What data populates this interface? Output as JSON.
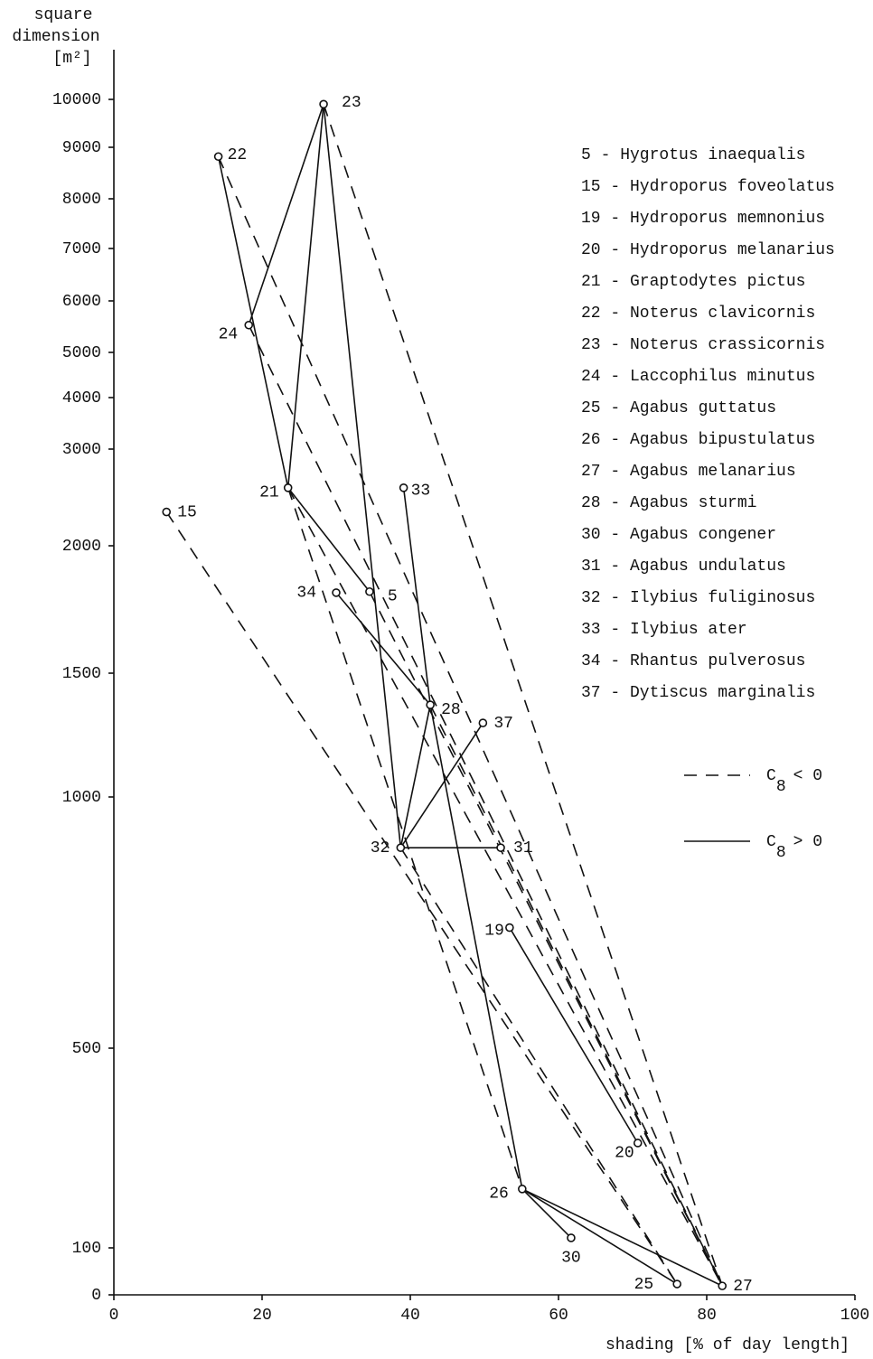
{
  "chart_data": {
    "type": "scatter",
    "ylabel": [
      "square",
      "dimension",
      "[m²]"
    ],
    "xlabel": "shading [% of day length]",
    "xlim": [
      0,
      100
    ],
    "xticks": [
      0,
      20,
      40,
      60,
      80,
      100
    ],
    "ylim": [
      0,
      10000
    ],
    "yticks": [
      0,
      100,
      500,
      1000,
      1500,
      2000,
      3000,
      4000,
      5000,
      6000,
      7000,
      8000,
      9000,
      10000
    ],
    "points": [
      {
        "label": "5",
        "x": 34.5,
        "y": 1820
      },
      {
        "label": "15",
        "x": 7.1,
        "y": 2350
      },
      {
        "label": "19",
        "x": 53.4,
        "y": 740
      },
      {
        "label": "20",
        "x": 70.7,
        "y": 310
      },
      {
        "label": "21",
        "x": 23.5,
        "y": 2600
      },
      {
        "label": "22",
        "x": 14.1,
        "y": 8820
      },
      {
        "label": "23",
        "x": 28.3,
        "y": 9900
      },
      {
        "label": "24",
        "x": 18.2,
        "y": 5530
      },
      {
        "label": "25",
        "x": 76,
        "y": 23
      },
      {
        "label": "26",
        "x": 55.1,
        "y": 218
      },
      {
        "label": "27",
        "x": 82.1,
        "y": 19
      },
      {
        "label": "28",
        "x": 42.7,
        "y": 1372
      },
      {
        "label": "30",
        "x": 61.7,
        "y": 120
      },
      {
        "label": "31",
        "x": 52.2,
        "y": 899
      },
      {
        "label": "32",
        "x": 38.7,
        "y": 899
      },
      {
        "label": "33",
        "x": 39.1,
        "y": 2600
      },
      {
        "label": "34",
        "x": 30,
        "y": 1816
      },
      {
        "label": "37",
        "x": 49.8,
        "y": 1299
      }
    ],
    "connections": [
      {
        "from": "22",
        "to": "21",
        "style": "solid"
      },
      {
        "from": "24",
        "to": "23",
        "style": "solid"
      },
      {
        "from": "23",
        "to": "21",
        "style": "solid"
      },
      {
        "from": "23",
        "to": "32",
        "style": "solid"
      },
      {
        "from": "21",
        "to": "5",
        "style": "solid"
      },
      {
        "from": "34",
        "to": "28",
        "style": "solid"
      },
      {
        "from": "33",
        "to": "28",
        "style": "solid"
      },
      {
        "from": "28",
        "to": "32",
        "style": "solid"
      },
      {
        "from": "28",
        "to": "26",
        "style": "solid"
      },
      {
        "from": "32",
        "to": "37",
        "style": "solid"
      },
      {
        "from": "32",
        "to": "31",
        "style": "solid"
      },
      {
        "from": "19",
        "to": "20",
        "style": "solid"
      },
      {
        "from": "26",
        "to": "30",
        "style": "solid"
      },
      {
        "from": "26",
        "to": "27",
        "style": "solid"
      },
      {
        "from": "26",
        "to": "25",
        "style": "solid"
      },
      {
        "from": "23",
        "to": "27",
        "style": "dashed"
      },
      {
        "from": "22",
        "to": "27",
        "style": "dashed"
      },
      {
        "from": "24",
        "to": "27",
        "style": "dashed"
      },
      {
        "from": "21",
        "to": "27",
        "style": "dashed"
      },
      {
        "from": "5",
        "to": "27",
        "style": "dashed"
      },
      {
        "from": "28",
        "to": "27",
        "style": "dashed"
      },
      {
        "from": "21",
        "to": "26",
        "style": "dashed"
      },
      {
        "from": "15",
        "to": "25",
        "style": "dashed"
      },
      {
        "from": "32",
        "to": "25",
        "style": "dashed"
      }
    ],
    "species": [
      "5 - Hygrotus inaequalis",
      "15 - Hydroporus foveolatus",
      "19 - Hydroporus memnonius",
      "20 - Hydroporus melanarius",
      "21 - Graptodytes pictus",
      "22 - Noterus clavicornis",
      "23 - Noterus crassicornis",
      "24 - Laccophilus minutus",
      "25 - Agabus guttatus",
      "26 - Agabus bipustulatus",
      "27 - Agabus melanarius",
      "28 - Agabus sturmi",
      "30 - Agabus congener",
      "31 - Agabus undulatus",
      "32 - Ilybius fuliginosus",
      "33 - Ilybius ater",
      "34 - Rhantus pulverosus",
      "37 - Dytiscus marginalis"
    ],
    "line_legend": [
      {
        "style": "dashed",
        "symbol": "C",
        "subscript": "8",
        "relation": "< 0"
      },
      {
        "style": "solid",
        "symbol": "C",
        "subscript": "8",
        "relation": "> 0"
      }
    ]
  }
}
